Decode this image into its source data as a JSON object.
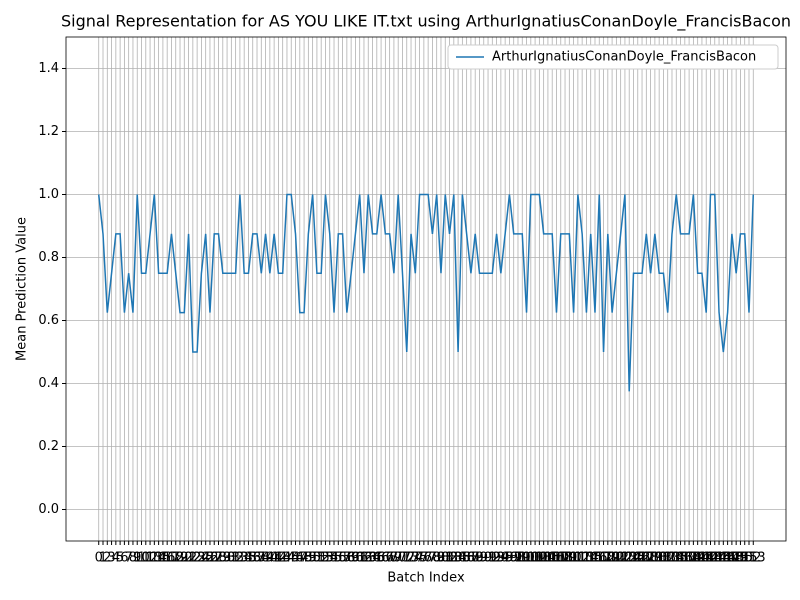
{
  "chart_data": {
    "type": "line",
    "title": "Signal Representation for AS YOU LIKE IT.txt using ArthurIgnatiusConanDoyle_FrancisBacon",
    "x_label": "Batch Index",
    "y_label": "Mean Prediction Value",
    "x": [
      0,
      1,
      2,
      3,
      4,
      5,
      6,
      7,
      8,
      9,
      10,
      11,
      12,
      13,
      14,
      15,
      16,
      17,
      18,
      19,
      20,
      21,
      22,
      23,
      24,
      25,
      26,
      27,
      28,
      29,
      30,
      31,
      32,
      33,
      34,
      35,
      36,
      37,
      38,
      39,
      40,
      41,
      42,
      43,
      44,
      45,
      46,
      47,
      48,
      49,
      50,
      51,
      52,
      53,
      54,
      55,
      56,
      57,
      58,
      59,
      60,
      61,
      62,
      63,
      64,
      65,
      66,
      67,
      68,
      69,
      70,
      71,
      72,
      73,
      74,
      75,
      76,
      77,
      78,
      79,
      80,
      81,
      82,
      83,
      84,
      85,
      86,
      87,
      88,
      89,
      90,
      91,
      92,
      93,
      94,
      95,
      96,
      97,
      98,
      99,
      100,
      101,
      102,
      103,
      104,
      105,
      106,
      107,
      108,
      109,
      110,
      111,
      112,
      113,
      114,
      115,
      116,
      117,
      118,
      119,
      120,
      121,
      122,
      123,
      124,
      125,
      126,
      127,
      128,
      129,
      130,
      131,
      132,
      133,
      134,
      135,
      136,
      137,
      138,
      139,
      140,
      141,
      142,
      143,
      144,
      145,
      146,
      147,
      148,
      149,
      150,
      151,
      152,
      153
    ],
    "series": [
      {
        "name": "ArthurIgnatiusConanDoyle_FrancisBacon",
        "color": "#1f77b4",
        "values": [
          1.0,
          0.875,
          0.625,
          0.75,
          0.875,
          0.875,
          0.625,
          0.75,
          0.625,
          1.0,
          0.75,
          0.75,
          0.875,
          1.0,
          0.75,
          0.75,
          0.75,
          0.875,
          0.75,
          0.625,
          0.625,
          0.875,
          0.5,
          0.5,
          0.75,
          0.875,
          0.625,
          0.875,
          0.875,
          0.75,
          0.75,
          0.75,
          0.75,
          1.0,
          0.75,
          0.75,
          0.875,
          0.875,
          0.75,
          0.875,
          0.75,
          0.875,
          0.75,
          0.75,
          1.0,
          1.0,
          0.875,
          0.625,
          0.625,
          0.875,
          1.0,
          0.75,
          0.75,
          1.0,
          0.875,
          0.625,
          0.875,
          0.875,
          0.625,
          0.75,
          0.875,
          1.0,
          0.75,
          1.0,
          0.875,
          0.875,
          1.0,
          0.875,
          0.875,
          0.75,
          1.0,
          0.75,
          0.5,
          0.875,
          0.75,
          1.0,
          1.0,
          1.0,
          0.875,
          1.0,
          0.75,
          1.0,
          0.875,
          1.0,
          0.5,
          1.0,
          0.875,
          0.75,
          0.875,
          0.75,
          0.75,
          0.75,
          0.75,
          0.875,
          0.75,
          0.875,
          1.0,
          0.875,
          0.875,
          0.875,
          0.625,
          1.0,
          1.0,
          1.0,
          0.875,
          0.875,
          0.875,
          0.625,
          0.875,
          0.875,
          0.875,
          0.625,
          1.0,
          0.875,
          0.625,
          0.875,
          0.625,
          1.0,
          0.5,
          0.875,
          0.625,
          0.75,
          0.875,
          1.0,
          0.375,
          0.75,
          0.75,
          0.75,
          0.875,
          0.75,
          0.875,
          0.75,
          0.75,
          0.625,
          0.875,
          1.0,
          0.875,
          0.875,
          0.875,
          1.0,
          0.75,
          0.75,
          0.625,
          1.0,
          1.0,
          0.625,
          0.5,
          0.625,
          0.875,
          0.75,
          0.875,
          0.875,
          0.625,
          1.0
        ]
      }
    ],
    "xlim": [
      -7.65,
      160.65
    ],
    "ylim": [
      -0.1,
      1.5
    ],
    "yticks": [
      {
        "value": 0,
        "label": "0.0"
      },
      {
        "value": 0.2,
        "label": "0.2"
      },
      {
        "value": 0.4,
        "label": "0.4"
      },
      {
        "value": 0.6,
        "label": "0.6"
      },
      {
        "value": 0.8,
        "label": "0.8"
      },
      {
        "value": 1.0,
        "label": "1.0"
      },
      {
        "value": 1.2,
        "label": "1.2"
      },
      {
        "value": 1.4,
        "label": "1.4"
      }
    ],
    "grid": true,
    "legend": "upper right"
  }
}
